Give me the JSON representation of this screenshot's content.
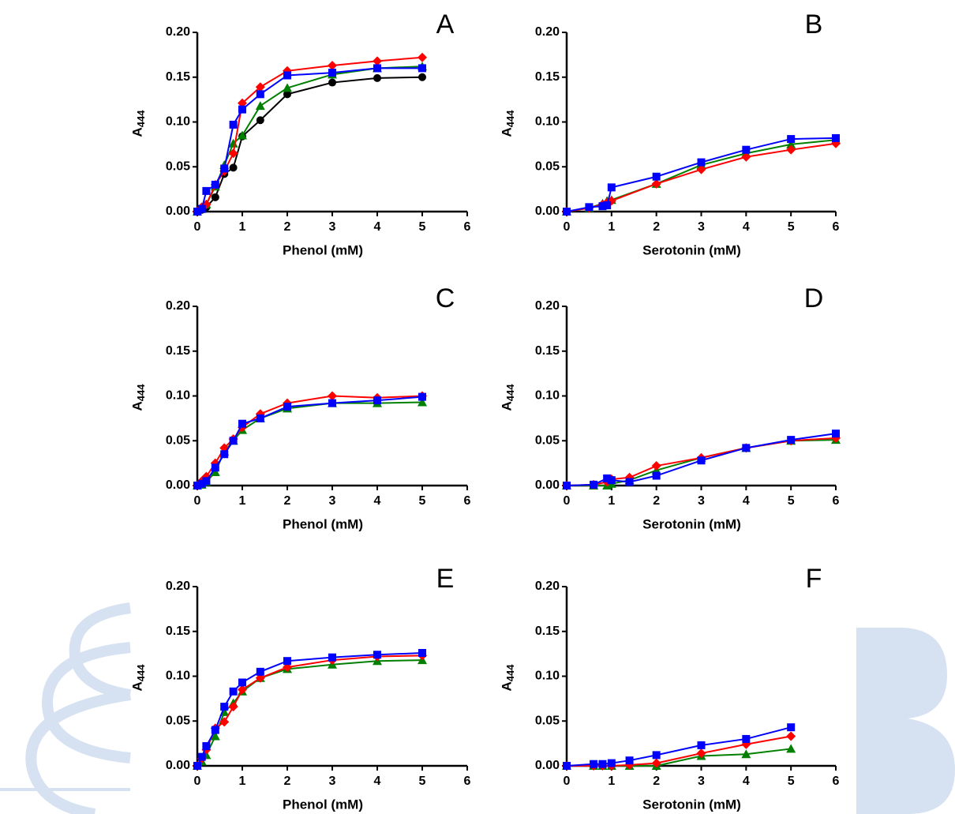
{
  "chart_data": [
    {
      "type": "line",
      "title": "A",
      "xlabel": "Phenol (mM)",
      "ylabel": "A",
      "ylabel_sub": "444",
      "xlim": [
        0,
        6
      ],
      "xticks": [
        0,
        1,
        2,
        3,
        4,
        5,
        6
      ],
      "ylim": [
        0,
        0.2
      ],
      "yticks": [
        {
          "value": 0,
          "label": "0.00"
        },
        {
          "value": 0.05,
          "label": "0.05"
        },
        {
          "value": 0.1,
          "label": "0.10"
        },
        {
          "value": 0.15,
          "label": "0.15"
        },
        {
          "value": 0.2,
          "label": "0.20"
        }
      ],
      "x": [
        0,
        0.1,
        0.2,
        0.4,
        0.6,
        0.8,
        1,
        1.4,
        2,
        3,
        4,
        5
      ],
      "series": [
        {
          "color": "#000000",
          "marker": "circle",
          "values": [
            0,
            0.002,
            0.005,
            0.016,
            0.042,
            0.049,
            0.084,
            0.102,
            0.131,
            0.144,
            0.149,
            0.15
          ]
        },
        {
          "color": "#008000",
          "marker": "triangle",
          "values": [
            0,
            0.003,
            0.008,
            0.028,
            0.052,
            0.076,
            0.085,
            0.118,
            0.138,
            0.153,
            0.16,
            0.162
          ]
        },
        {
          "color": "#ff0000",
          "marker": "diamond",
          "values": [
            0,
            0.005,
            0.008,
            0.03,
            0.045,
            0.065,
            0.121,
            0.139,
            0.157,
            0.163,
            0.168,
            0.172
          ]
        },
        {
          "color": "#0000ff",
          "marker": "square",
          "values": [
            0,
            0.003,
            0.023,
            0.03,
            0.048,
            0.097,
            0.114,
            0.131,
            0.152,
            0.155,
            0.16,
            0.16
          ]
        }
      ]
    },
    {
      "type": "line",
      "title": "B",
      "xlabel": "Serotonin (mM)",
      "ylabel": "A",
      "ylabel_sub": "444",
      "xlim": [
        0,
        6
      ],
      "xticks": [
        0,
        1,
        2,
        3,
        4,
        5,
        6
      ],
      "ylim": [
        0,
        0.2
      ],
      "yticks": [
        {
          "value": 0,
          "label": "0.00"
        },
        {
          "value": 0.05,
          "label": "0.05"
        },
        {
          "value": 0.1,
          "label": "0.10"
        },
        {
          "value": 0.15,
          "label": "0.15"
        },
        {
          "value": 0.2,
          "label": "0.20"
        }
      ],
      "x": [
        0,
        0.5,
        0.8,
        0.9,
        1,
        2,
        3,
        4,
        5,
        6
      ],
      "series": [
        {
          "color": "#008000",
          "marker": "triangle",
          "values": [
            0,
            0.004,
            0.009,
            0.012,
            0.013,
            0.031,
            0.052,
            0.065,
            0.075,
            0.08
          ]
        },
        {
          "color": "#ff0000",
          "marker": "diamond",
          "values": [
            0,
            0.004,
            0.008,
            0.01,
            0.012,
            0.031,
            0.047,
            0.061,
            0.069,
            0.076
          ]
        },
        {
          "color": "#0000ff",
          "marker": "square",
          "values": [
            0,
            0.005,
            0.006,
            0.007,
            0.027,
            0.039,
            0.055,
            0.069,
            0.081,
            0.082
          ]
        }
      ]
    },
    {
      "type": "line",
      "title": "C",
      "xlabel": "Phenol (mM)",
      "ylabel": "A",
      "ylabel_sub": "444",
      "xlim": [
        0,
        6
      ],
      "xticks": [
        0,
        1,
        2,
        3,
        4,
        5,
        6
      ],
      "ylim": [
        0,
        0.2
      ],
      "yticks": [
        {
          "value": 0,
          "label": "0.00"
        },
        {
          "value": 0.05,
          "label": "0.05"
        },
        {
          "value": 0.1,
          "label": "0.10"
        },
        {
          "value": 0.15,
          "label": "0.15"
        },
        {
          "value": 0.2,
          "label": "0.20"
        }
      ],
      "x": [
        0,
        0.1,
        0.2,
        0.4,
        0.6,
        0.8,
        1,
        1.4,
        2,
        3,
        4,
        5
      ],
      "series": [
        {
          "color": "#008000",
          "marker": "triangle",
          "values": [
            0,
            0.001,
            0.004,
            0.015,
            0.038,
            0.05,
            0.062,
            0.075,
            0.086,
            0.092,
            0.092,
            0.093
          ]
        },
        {
          "color": "#ff0000",
          "marker": "diamond",
          "values": [
            0,
            0.005,
            0.01,
            0.025,
            0.042,
            0.052,
            0.065,
            0.08,
            0.092,
            0.1,
            0.098,
            0.1
          ]
        },
        {
          "color": "#0000ff",
          "marker": "square",
          "values": [
            0,
            0.002,
            0.005,
            0.02,
            0.035,
            0.05,
            0.069,
            0.075,
            0.088,
            0.092,
            0.095,
            0.099
          ]
        }
      ]
    },
    {
      "type": "line",
      "title": "D",
      "xlabel": "Serotonin (mM)",
      "ylabel": "A",
      "ylabel_sub": "444",
      "xlim": [
        0,
        6
      ],
      "xticks": [
        0,
        1,
        2,
        3,
        4,
        5,
        6
      ],
      "ylim": [
        0,
        0.2
      ],
      "yticks": [
        {
          "value": 0,
          "label": "0.00"
        },
        {
          "value": 0.05,
          "label": "0.05"
        },
        {
          "value": 0.1,
          "label": "0.10"
        },
        {
          "value": 0.15,
          "label": "0.15"
        },
        {
          "value": 0.2,
          "label": "0.20"
        }
      ],
      "x": [
        0,
        0.6,
        0.9,
        1,
        1.4,
        2,
        3,
        4,
        5,
        6
      ],
      "series": [
        {
          "color": "#008000",
          "marker": "triangle",
          "values": [
            0,
            0,
            0,
            0.002,
            0.006,
            0.017,
            0.031,
            0.042,
            0.05,
            0.051
          ]
        },
        {
          "color": "#ff0000",
          "marker": "diamond",
          "values": [
            0,
            0.001,
            0.004,
            0.007,
            0.009,
            0.022,
            0.031,
            0.042,
            0.05,
            0.053
          ]
        },
        {
          "color": "#0000ff",
          "marker": "square",
          "values": [
            0,
            0.001,
            0.008,
            0.006,
            0.004,
            0.011,
            0.028,
            0.042,
            0.051,
            0.058
          ]
        }
      ]
    },
    {
      "type": "line",
      "title": "E",
      "xlabel": "Phenol (mM)",
      "ylabel": "A",
      "ylabel_sub": "444",
      "xlim": [
        0,
        6
      ],
      "xticks": [
        0,
        1,
        2,
        3,
        4,
        5,
        6
      ],
      "ylim": [
        0,
        0.2
      ],
      "yticks": [
        {
          "value": 0,
          "label": "0.00"
        },
        {
          "value": 0.05,
          "label": "0.05"
        },
        {
          "value": 0.1,
          "label": "0.10"
        },
        {
          "value": 0.15,
          "label": "0.15"
        },
        {
          "value": 0.2,
          "label": "0.20"
        }
      ],
      "x": [
        0,
        0.1,
        0.2,
        0.4,
        0.6,
        0.8,
        1,
        1.4,
        2,
        3,
        4,
        5
      ],
      "series": [
        {
          "color": "#008000",
          "marker": "triangle",
          "values": [
            0,
            0.005,
            0.012,
            0.033,
            0.06,
            0.07,
            0.083,
            0.098,
            0.108,
            0.113,
            0.117,
            0.118
          ]
        },
        {
          "color": "#ff0000",
          "marker": "diamond",
          "values": [
            0,
            0.008,
            0.018,
            0.042,
            0.049,
            0.066,
            0.085,
            0.098,
            0.11,
            0.118,
            0.122,
            0.123
          ]
        },
        {
          "color": "#0000ff",
          "marker": "square",
          "values": [
            0,
            0.01,
            0.022,
            0.04,
            0.066,
            0.083,
            0.093,
            0.105,
            0.117,
            0.121,
            0.124,
            0.126
          ]
        }
      ]
    },
    {
      "type": "line",
      "title": "F",
      "xlabel": "Serotonin (mM)",
      "ylabel": "A",
      "ylabel_sub": "444",
      "xlim": [
        0,
        6
      ],
      "xticks": [
        0,
        1,
        2,
        3,
        4,
        5,
        6
      ],
      "ylim": [
        0,
        0.2
      ],
      "yticks": [
        {
          "value": 0,
          "label": "0.00"
        },
        {
          "value": 0.05,
          "label": "0.05"
        },
        {
          "value": 0.1,
          "label": "0.10"
        },
        {
          "value": 0.15,
          "label": "0.15"
        },
        {
          "value": 0.2,
          "label": "0.20"
        }
      ],
      "x": [
        0,
        0.6,
        0.8,
        1,
        1.4,
        2,
        3,
        4,
        5
      ],
      "series": [
        {
          "color": "#008000",
          "marker": "triangle",
          "values": [
            0,
            0,
            0,
            0,
            0,
            0,
            0.011,
            0.013,
            0.019
          ]
        },
        {
          "color": "#ff0000",
          "marker": "diamond",
          "values": [
            0,
            0,
            0,
            0,
            0.001,
            0.003,
            0.014,
            0.024,
            0.033
          ]
        },
        {
          "color": "#0000ff",
          "marker": "square",
          "values": [
            0,
            0.002,
            0.002,
            0.003,
            0.006,
            0.012,
            0.023,
            0.03,
            0.043
          ]
        }
      ]
    }
  ]
}
